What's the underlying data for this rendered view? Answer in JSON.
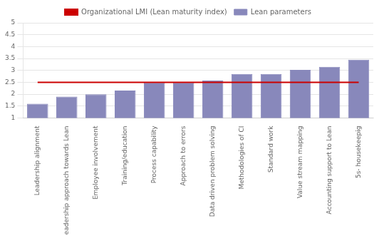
{
  "chart_data": {
    "type": "bar",
    "categories": [
      "Leadership alignment",
      "Leadership approach towards Lean",
      "Employee involvement",
      "Training/education",
      "Process capability",
      "Approach to errors",
      "Data driven problem solving",
      "Methodologies of CI",
      "Standard work",
      "Value stream mapping",
      "Accounting support to Lean",
      "5s- housekeepig"
    ],
    "series": [
      {
        "name": "Lean parameters",
        "color": "#8888bb",
        "values": [
          1.6,
          1.9,
          2.0,
          2.15,
          2.5,
          2.5,
          2.57,
          2.85,
          2.85,
          3.02,
          3.15,
          3.45
        ]
      },
      {
        "name": "Organizational LMI (Lean maturity index)",
        "type": "line",
        "color": "#cc0000",
        "values": [
          2.5,
          2.5,
          2.5,
          2.5,
          2.5,
          2.5,
          2.5,
          2.5,
          2.5,
          2.5,
          2.5,
          2.5
        ]
      }
    ],
    "ylim": [
      1.0,
      5.0
    ],
    "yticks": [
      1.0,
      1.5,
      2.0,
      2.5,
      3.0,
      3.5,
      4.0,
      4.5,
      5.0
    ],
    "grid": true,
    "legend": "top"
  }
}
